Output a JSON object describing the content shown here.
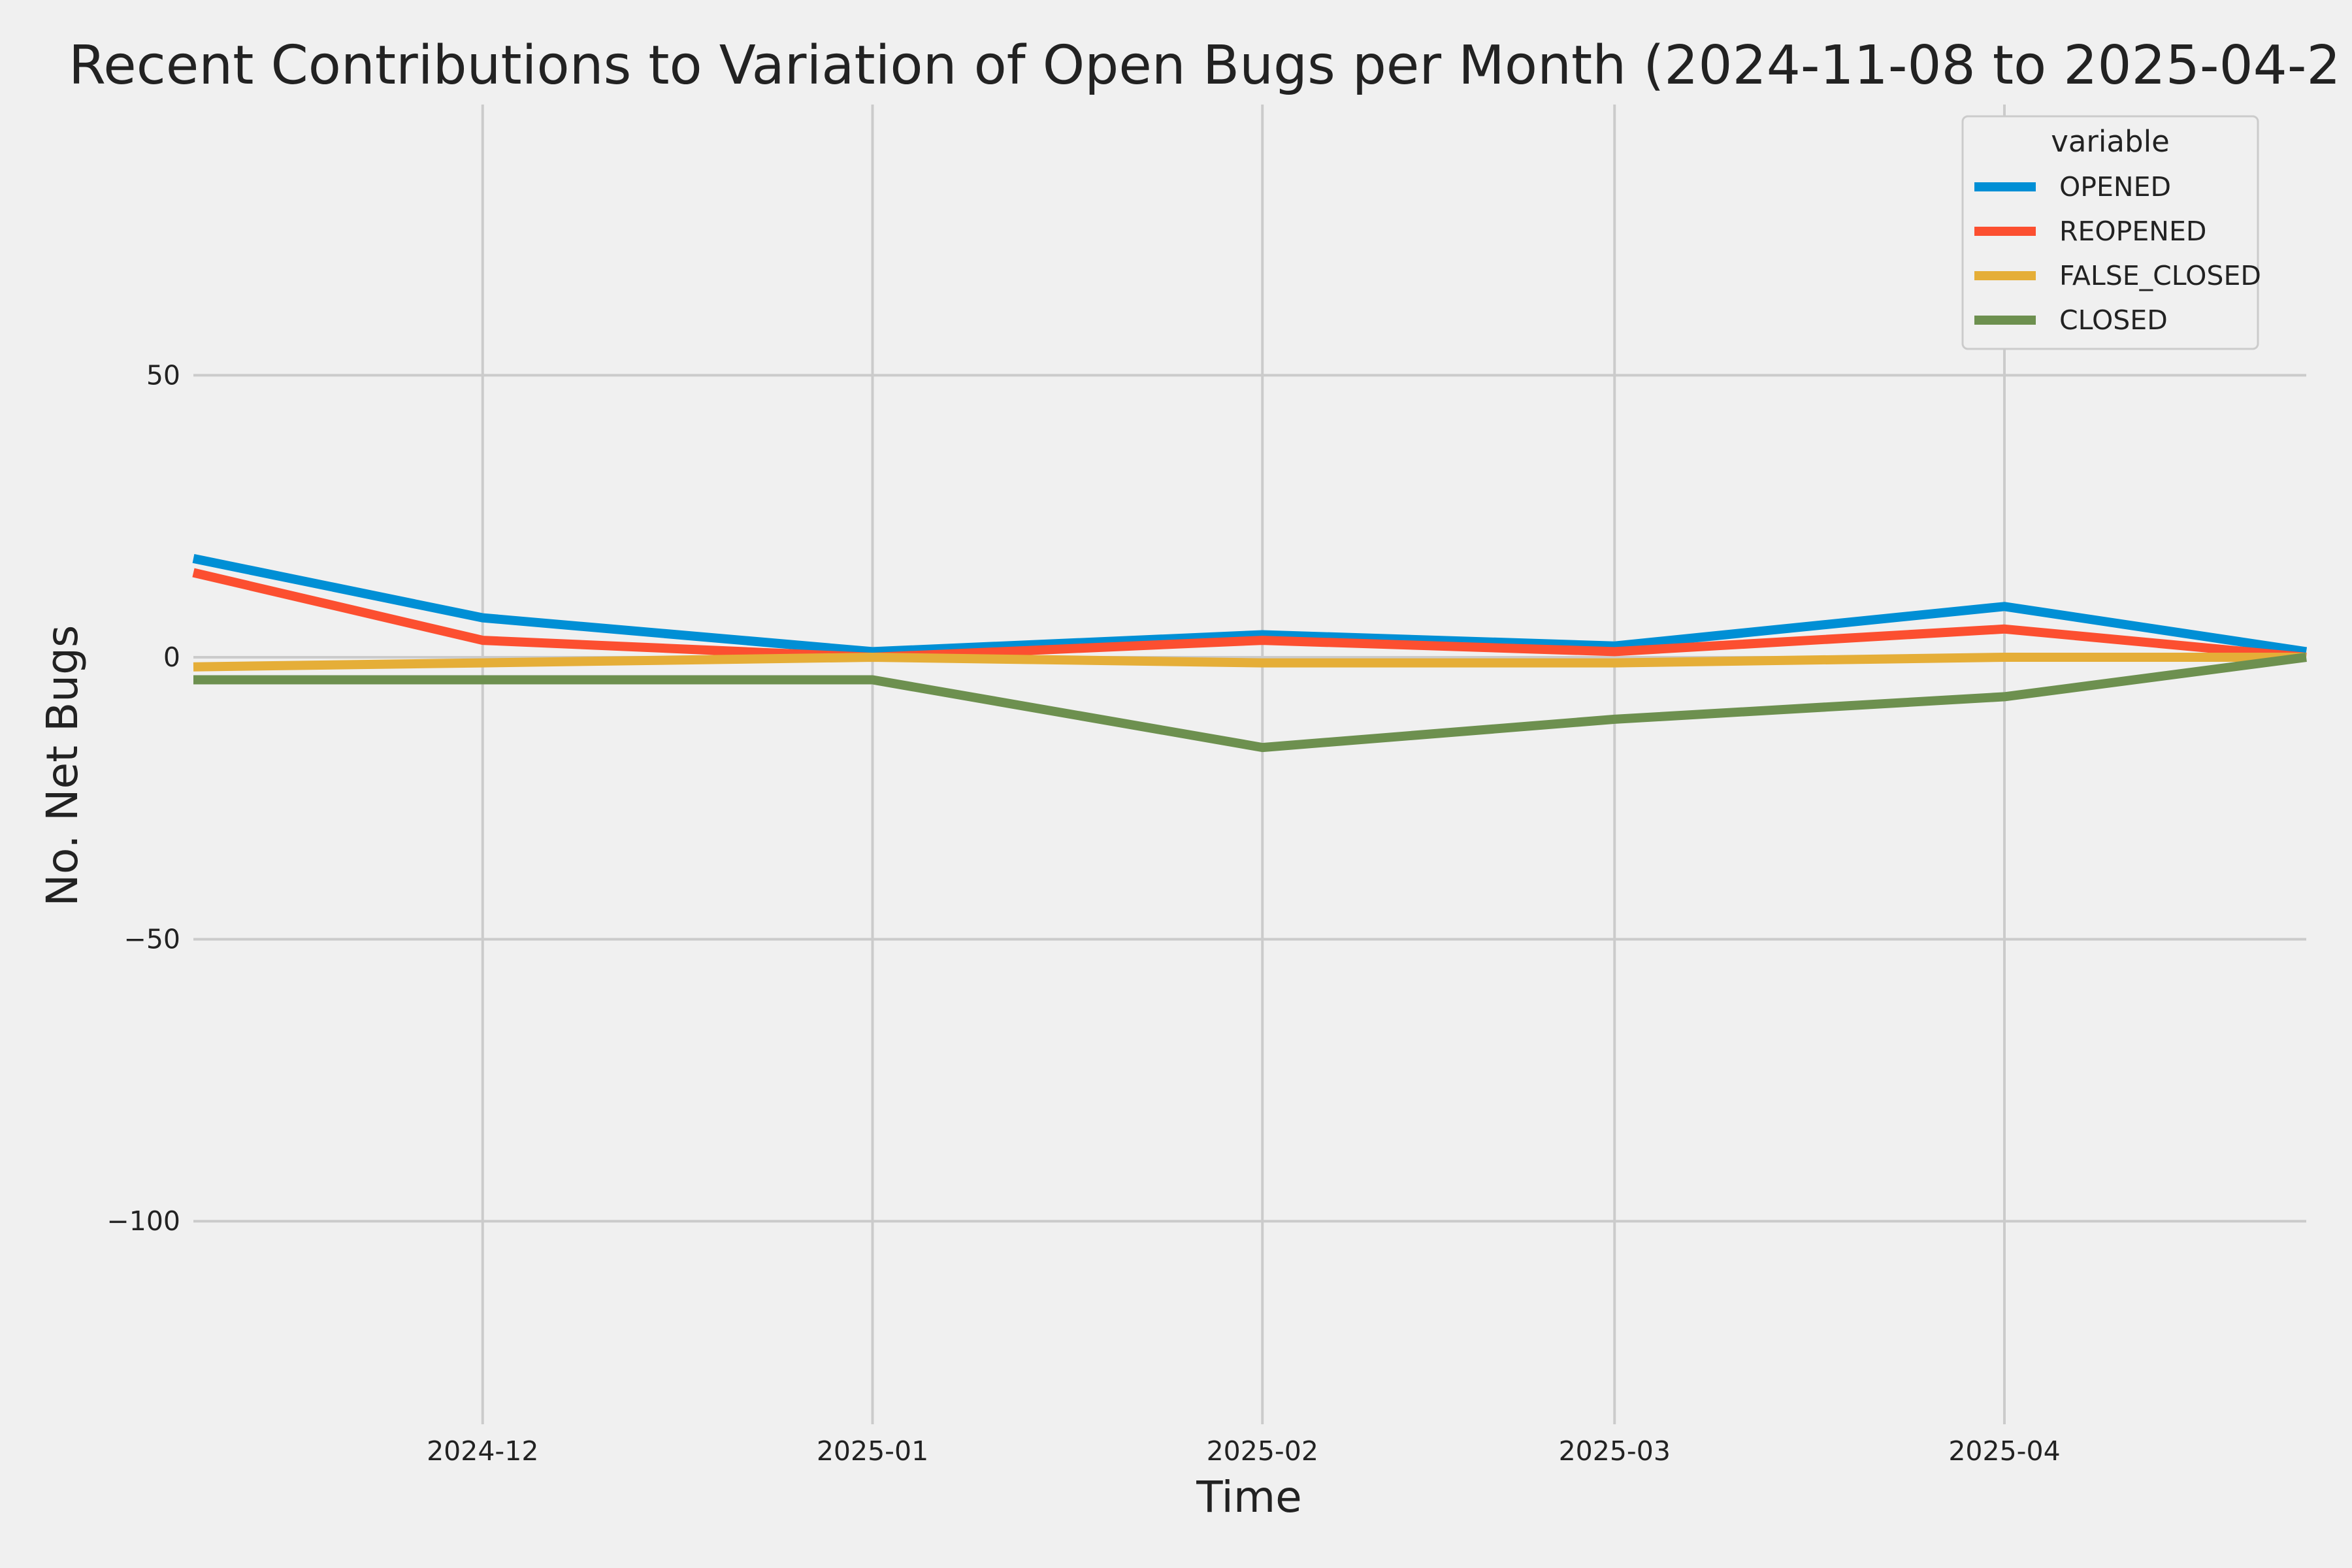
{
  "chart_data": {
    "type": "line",
    "title": "Recent Contributions to Variation of Open Bugs per Month (2024-11-08 to 2025-04-2",
    "xlabel": "Time",
    "ylabel": "No. Net Bugs",
    "x": [
      "2024-11-08",
      "2024-12-01",
      "2025-01-01",
      "2025-02-01",
      "2025-03-01",
      "2025-04-01",
      "2025-04-25"
    ],
    "x_ticks": [
      "2024-12-01",
      "2025-01-01",
      "2025-02-01",
      "2025-03-01",
      "2025-04-01"
    ],
    "x_tick_labels": [
      "2024-12",
      "2025-01",
      "2025-02",
      "2025-03",
      "2025-04"
    ],
    "xlim": [
      "2024-11-08",
      "2025-04-25"
    ],
    "y_ticks": [
      50,
      0,
      -50,
      -100
    ],
    "y_tick_labels": [
      "50",
      "0",
      "−50",
      "−100"
    ],
    "ylim": [
      -136,
      98
    ],
    "grid": true,
    "legend": {
      "title": "variable",
      "placement": "top-right"
    },
    "series": [
      {
        "name": "OPENED",
        "color": "#008fd5",
        "values": [
          17.5,
          7,
          1,
          4,
          2,
          9,
          1
        ]
      },
      {
        "name": "REOPENED",
        "color": "#fc4f30",
        "values": [
          15,
          3,
          0,
          3,
          1,
          5,
          0
        ]
      },
      {
        "name": "FALSE_CLOSED",
        "color": "#e5ae38",
        "values": [
          -1.7,
          -1,
          0,
          -1,
          -1,
          0,
          0
        ]
      },
      {
        "name": "CLOSED",
        "color": "#6d904f",
        "values": [
          -4,
          -4,
          -4,
          -16,
          -11,
          -7,
          0
        ]
      }
    ]
  }
}
